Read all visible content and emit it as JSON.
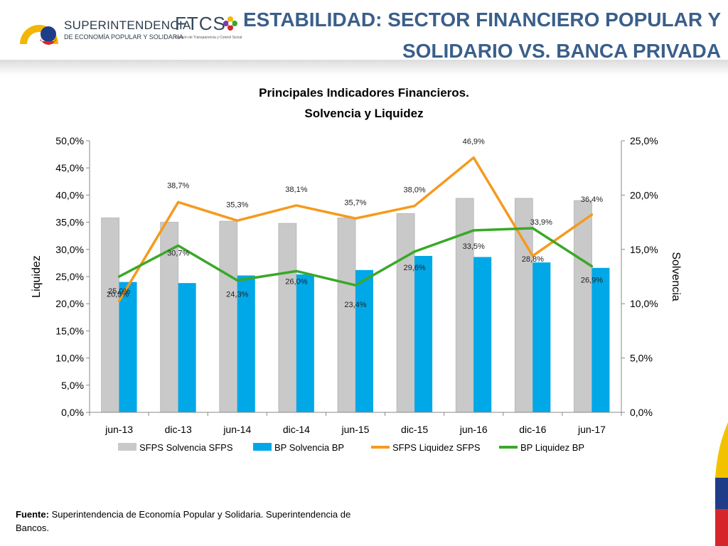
{
  "header": {
    "logo_superintendencia_name": "SUPERINTENDENCIA",
    "logo_superintendencia_sub": "DE ECONOMÍA POPULAR Y SOLIDARIA",
    "logo_ftcs_name": "FTCS",
    "logo_ftcs_sub": "Función de Transparencia y Control Social",
    "title_line1": "ESTABILIDAD: SECTOR FINANCIERO POPULAR Y",
    "title_line2": "SOLIDARIO VS. BANCA PRIVADA"
  },
  "footer": {
    "source_label": "Fuente:",
    "source_text": " Superintendencia de Economía Popular y Solidaria. Superintendencia de Bancos."
  },
  "colors": {
    "title": "#3a5f8a",
    "sfps_solvencia": "#c9c9c9",
    "bp_solvencia": "#00a8e8",
    "sfps_liquidez": "#f59a1e",
    "bp_liquidez": "#3aa829"
  },
  "chart_data": {
    "type": "bar",
    "title": "Principales Indicadores Financieros.",
    "subtitle": "Solvencia y Liquidez",
    "categories": [
      "jun-13",
      "dic-13",
      "jun-14",
      "dic-14",
      "jun-15",
      "dic-15",
      "jun-16",
      "dic-16",
      "jun-17"
    ],
    "ylabel_left": "Liquidez",
    "ylabel_right": "Solvencia",
    "ylim_left": [
      0,
      50
    ],
    "ylim_right": [
      0,
      25
    ],
    "yticks_left": [
      "0,0%",
      "5,0%",
      "10,0%",
      "15,0%",
      "20,0%",
      "25,0%",
      "30,0%",
      "35,0%",
      "40,0%",
      "45,0%",
      "50,0%"
    ],
    "yticks_right": [
      "0,0%",
      "5,0%",
      "10,0%",
      "15,0%",
      "20,0%",
      "25,0%"
    ],
    "legend_position": "bottom",
    "series": [
      {
        "name": "SFPS Solvencia SFPS",
        "kind": "bar",
        "axis": "right",
        "color": "#c9c9c9",
        "values": [
          17.9,
          17.5,
          17.6,
          17.4,
          17.9,
          18.3,
          19.7,
          19.7,
          19.5
        ],
        "labels": [
          "",
          "",
          "",
          "",
          "",
          "",
          "",
          "",
          ""
        ]
      },
      {
        "name": "BP Solvencia BP",
        "kind": "bar",
        "axis": "right",
        "color": "#00a8e8",
        "values": [
          12.0,
          11.9,
          12.6,
          12.7,
          13.1,
          14.4,
          14.3,
          13.8,
          13.3
        ],
        "labels": [
          "",
          "",
          "",
          "",
          "",
          "",
          "",
          "",
          ""
        ]
      },
      {
        "name": "SFPS Liquidez SFPS",
        "kind": "line",
        "axis": "left",
        "color": "#f59a1e",
        "values": [
          20.5,
          38.7,
          35.3,
          38.1,
          35.7,
          38.0,
          46.9,
          28.8,
          36.4
        ],
        "labels": [
          "20,5%",
          "38,7%",
          "35,3%",
          "38,1%",
          "35,7%",
          "38,0%",
          "46,9%",
          "28,8%",
          "36,4%"
        ]
      },
      {
        "name": "BP Liquidez BP",
        "kind": "line",
        "axis": "left",
        "color": "#3aa829",
        "values": [
          25.0,
          30.7,
          24.3,
          26.0,
          23.4,
          29.6,
          33.5,
          33.9,
          26.9
        ],
        "labels": [
          "25,0%",
          "30,7%",
          "24,3%",
          "26,0%",
          "23,4%",
          "29,6%",
          "33,5%",
          "33,9%",
          "26,9%"
        ]
      }
    ]
  }
}
